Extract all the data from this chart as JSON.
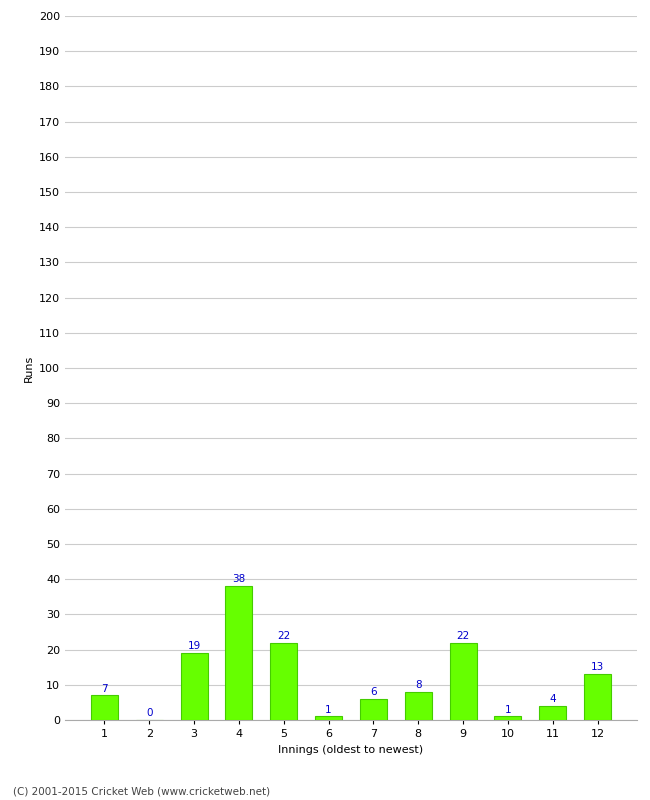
{
  "innings": [
    1,
    2,
    3,
    4,
    5,
    6,
    7,
    8,
    9,
    10,
    11,
    12
  ],
  "runs": [
    7,
    0,
    19,
    38,
    22,
    1,
    6,
    8,
    22,
    1,
    4,
    13
  ],
  "bar_color": "#66ff00",
  "bar_edge_color": "#44cc00",
  "label_color": "#0000cc",
  "xlabel": "Innings (oldest to newest)",
  "ylabel": "Runs",
  "ylim": [
    0,
    200
  ],
  "yticks": [
    0,
    10,
    20,
    30,
    40,
    50,
    60,
    70,
    80,
    90,
    100,
    110,
    120,
    130,
    140,
    150,
    160,
    170,
    180,
    190,
    200
  ],
  "footer": "(C) 2001-2015 Cricket Web (www.cricketweb.net)",
  "grid_color": "#cccccc",
  "background_color": "#ffffff",
  "label_color_blue": "#0000cc",
  "label_fontsize": 7.5,
  "axis_label_fontsize": 8,
  "tick_fontsize": 8,
  "footer_fontsize": 7.5
}
